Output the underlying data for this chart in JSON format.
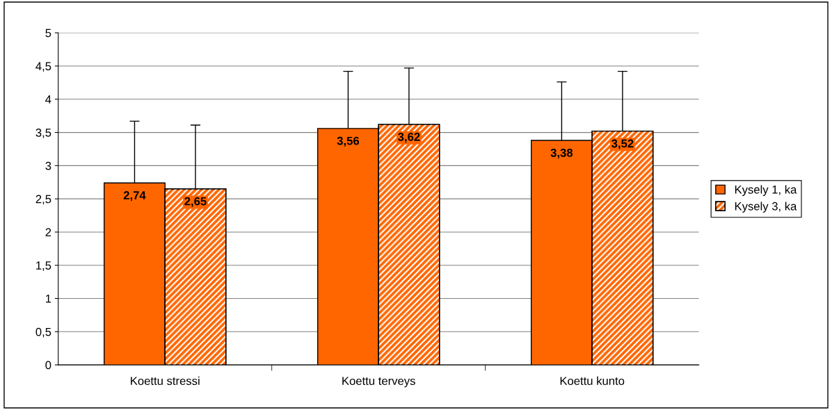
{
  "chart_data": {
    "type": "bar",
    "categories": [
      "Koettu stressi",
      "Koettu terveys",
      "Koettu kunto"
    ],
    "series": [
      {
        "name": "Kysely 1, ka",
        "color": "#ff6600",
        "values": [
          2.74,
          3.56,
          3.38
        ],
        "value_labels": [
          "2,74",
          "3,56",
          "3,38"
        ],
        "errors": [
          [
            2.74,
            3.67
          ],
          [
            3.56,
            4.42
          ],
          [
            3.38,
            4.26
          ]
        ]
      },
      {
        "name": "Kysely 3, ka",
        "color": "#ff6600",
        "values": [
          2.65,
          3.62,
          3.52
        ],
        "value_labels": [
          "2,65",
          "3,62",
          "3,52"
        ],
        "errors": [
          [
            2.65,
            3.61
          ],
          [
            3.62,
            4.47
          ],
          [
            3.52,
            4.42
          ]
        ]
      }
    ],
    "ylim": [
      0,
      5
    ],
    "yticks": [
      0,
      {
        "value": 0.5,
        "label": "0,5"
      },
      1,
      {
        "value": 1.5,
        "label": "1,5"
      },
      2,
      {
        "value": 2.5,
        "label": "2,5"
      },
      3,
      {
        "value": 3.5,
        "label": "3,5"
      },
      4,
      {
        "value": 4.5,
        "label": "4,5"
      },
      5
    ],
    "grid": "y",
    "legend": "right"
  }
}
